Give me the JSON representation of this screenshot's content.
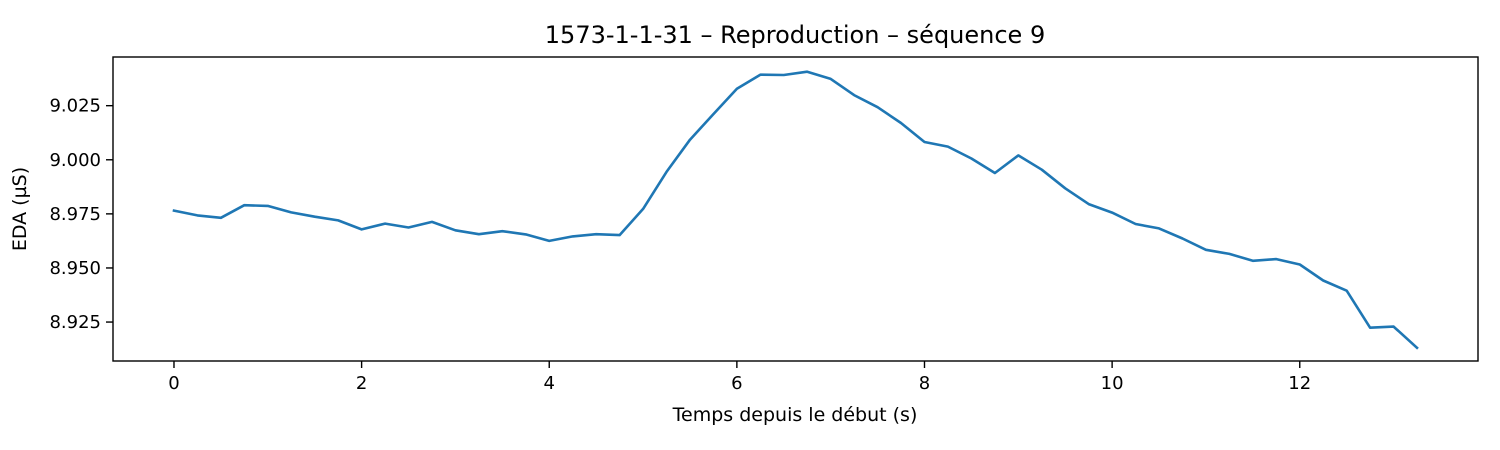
{
  "chart_data": {
    "type": "line",
    "title": "1573-1-1-31 – Reproduction – séquence 9",
    "xlabel": "Temps depuis le début (s)",
    "ylabel": "EDA (µS)",
    "xlim": [
      -0.65,
      13.9
    ],
    "ylim": [
      8.907,
      9.0475
    ],
    "x_ticks": [
      0,
      2,
      4,
      6,
      8,
      10,
      12
    ],
    "x_tick_labels": [
      "0",
      "2",
      "4",
      "6",
      "8",
      "10",
      "12"
    ],
    "y_ticks": [
      8.925,
      8.95,
      8.975,
      9.0,
      9.025
    ],
    "y_tick_labels": [
      "8.925",
      "8.950",
      "8.975",
      "9.000",
      "9.025"
    ],
    "grid": false,
    "series": [
      {
        "color": "#1f77b4",
        "x": [
          0,
          0.25,
          0.5,
          0.75,
          1,
          1.25,
          1.5,
          1.75,
          2,
          2.25,
          2.5,
          2.75,
          3,
          3.25,
          3.5,
          3.75,
          4,
          4.25,
          4.5,
          4.75,
          5,
          5.25,
          5.5,
          5.75,
          6,
          6.25,
          6.5,
          6.75,
          7,
          7.25,
          7.5,
          7.75,
          8,
          8.25,
          8.5,
          8.75,
          9,
          9.25,
          9.5,
          9.75,
          10,
          10.25,
          10.5,
          10.75,
          11,
          11.25,
          11.5,
          11.75,
          12,
          12.25,
          12.5,
          12.75,
          13,
          13.25
        ],
        "y": [
          8.9765,
          8.9743,
          8.9732,
          8.979,
          8.9787,
          8.9757,
          8.9737,
          8.972,
          8.9678,
          8.9705,
          8.9687,
          8.9713,
          8.9674,
          8.9656,
          8.967,
          8.9655,
          8.9625,
          8.9646,
          8.9656,
          8.9652,
          8.9773,
          8.9944,
          9.0093,
          9.0211,
          9.0328,
          9.0393,
          9.0392,
          9.0407,
          9.0374,
          9.0299,
          9.0243,
          9.017,
          9.0082,
          9.0061,
          9.0006,
          8.9939,
          9.002,
          8.9954,
          8.9868,
          8.9795,
          8.9756,
          8.9703,
          8.9683,
          8.9636,
          8.9584,
          8.9565,
          8.9533,
          8.9541,
          8.9516,
          8.9442,
          8.9395,
          8.9224,
          8.9229,
          8.9131
        ]
      }
    ]
  }
}
